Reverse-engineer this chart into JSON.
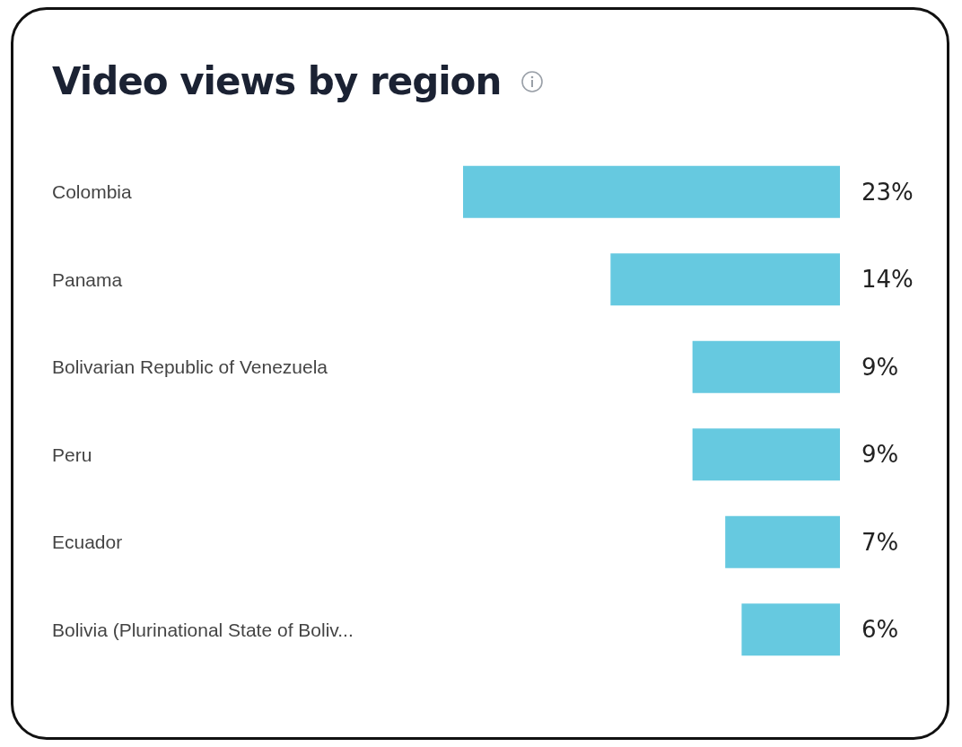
{
  "chart_data": {
    "type": "bar",
    "orientation": "horizontal",
    "title": "Video views by region",
    "categories": [
      "Colombia",
      "Panama",
      "Bolivarian Republic of Venezuela",
      "Peru",
      "Ecuador",
      "Bolivia (Plurinational State of Boliv..."
    ],
    "values": [
      23,
      14,
      9,
      9,
      7,
      6
    ],
    "value_labels": [
      "23%",
      "14%",
      "9%",
      "9%",
      "7%",
      "6%"
    ],
    "color": "#66c9e0"
  }
}
